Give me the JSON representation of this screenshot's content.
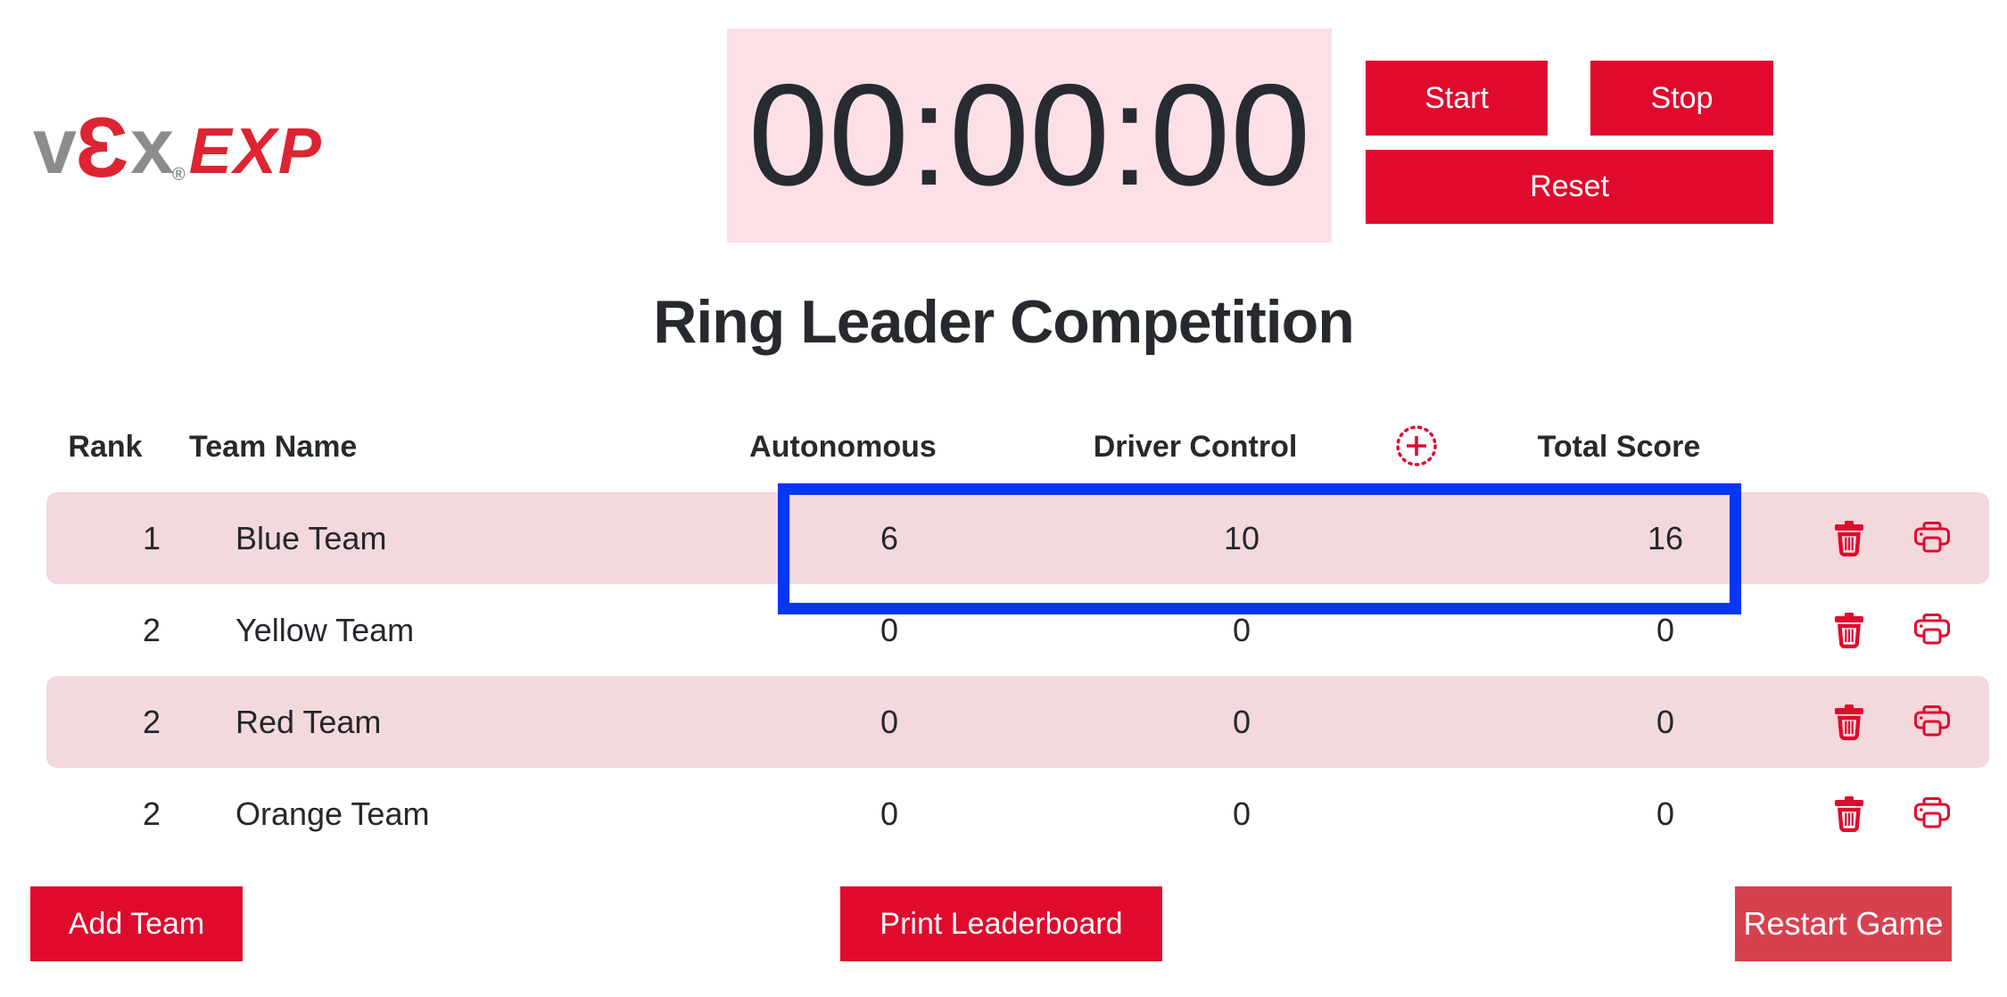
{
  "logo": {
    "letter_v": "v",
    "letter_e": "Ɛ",
    "letter_x": "x",
    "registered": "®",
    "suffix": "EXP"
  },
  "timer": {
    "value": "00:00:00"
  },
  "timer_controls": {
    "start": "Start",
    "stop": "Stop",
    "reset": "Reset"
  },
  "title": "Ring Leader Competition",
  "table": {
    "headers": {
      "rank": "Rank",
      "team_name": "Team Name",
      "autonomous": "Autonomous",
      "driver_control": "Driver Control",
      "total_score": "Total Score"
    },
    "rows": [
      {
        "rank": "1",
        "name": "Blue Team",
        "autonomous": "6",
        "driver_control": "10",
        "total_score": "16",
        "highlighted": true,
        "shaded": true
      },
      {
        "rank": "2",
        "name": "Yellow Team",
        "autonomous": "0",
        "driver_control": "0",
        "total_score": "0",
        "highlighted": false,
        "shaded": false
      },
      {
        "rank": "2",
        "name": "Red Team",
        "autonomous": "0",
        "driver_control": "0",
        "total_score": "0",
        "highlighted": false,
        "shaded": true
      },
      {
        "rank": "2",
        "name": "Orange Team",
        "autonomous": "0",
        "driver_control": "0",
        "total_score": "0",
        "highlighted": false,
        "shaded": false
      }
    ]
  },
  "footer": {
    "add_team": "Add Team",
    "print_leaderboard": "Print Leaderboard",
    "restart_game": "Restart Game"
  },
  "icons": {
    "add_column": "plus-circle-icon",
    "delete_row": "trash-icon",
    "print_row": "printer-icon"
  },
  "colors": {
    "button_red": "#E00A2D",
    "restart_red": "#D6414F",
    "timer_pink": "#FCE0E6",
    "row_pink": "#F3D8DC",
    "highlight_blue": "#0836F5",
    "text_dark": "#26292E",
    "logo_gray": "#8A8C8E",
    "logo_red": "#DC2433"
  }
}
